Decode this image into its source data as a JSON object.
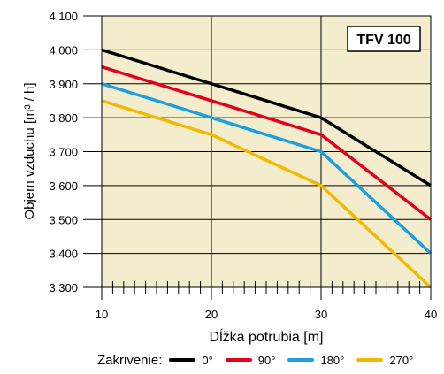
{
  "chart_data": {
    "type": "line",
    "title": "TFV 100",
    "xlabel": "Dĺžka potrubia [m]",
    "ylabel": "Objem vzduchu [m³ / h]",
    "x": [
      10,
      20,
      30,
      40
    ],
    "xlim": [
      10,
      40
    ],
    "ylim": [
      3.3,
      4.1
    ],
    "x_ticks": [
      "10",
      "20",
      "30",
      "40"
    ],
    "y_ticks": [
      "3.300",
      "3.400",
      "3.500",
      "3.600",
      "3.700",
      "3.800",
      "3.900",
      "4.000",
      "4.100"
    ],
    "grid": true,
    "legend_title": "Zakrivenie:",
    "legend_position": "bottom",
    "series": [
      {
        "name": "0°",
        "color": "#000000",
        "values": [
          4.0,
          3.9,
          3.8,
          3.6
        ]
      },
      {
        "name": "90°",
        "color": "#e2001a",
        "values": [
          3.95,
          3.85,
          3.75,
          3.5
        ]
      },
      {
        "name": "180°",
        "color": "#1a9fe0",
        "values": [
          3.9,
          3.8,
          3.7,
          3.4
        ]
      },
      {
        "name": "270°",
        "color": "#f5b800",
        "values": [
          3.85,
          3.75,
          3.6,
          3.3
        ]
      }
    ]
  }
}
